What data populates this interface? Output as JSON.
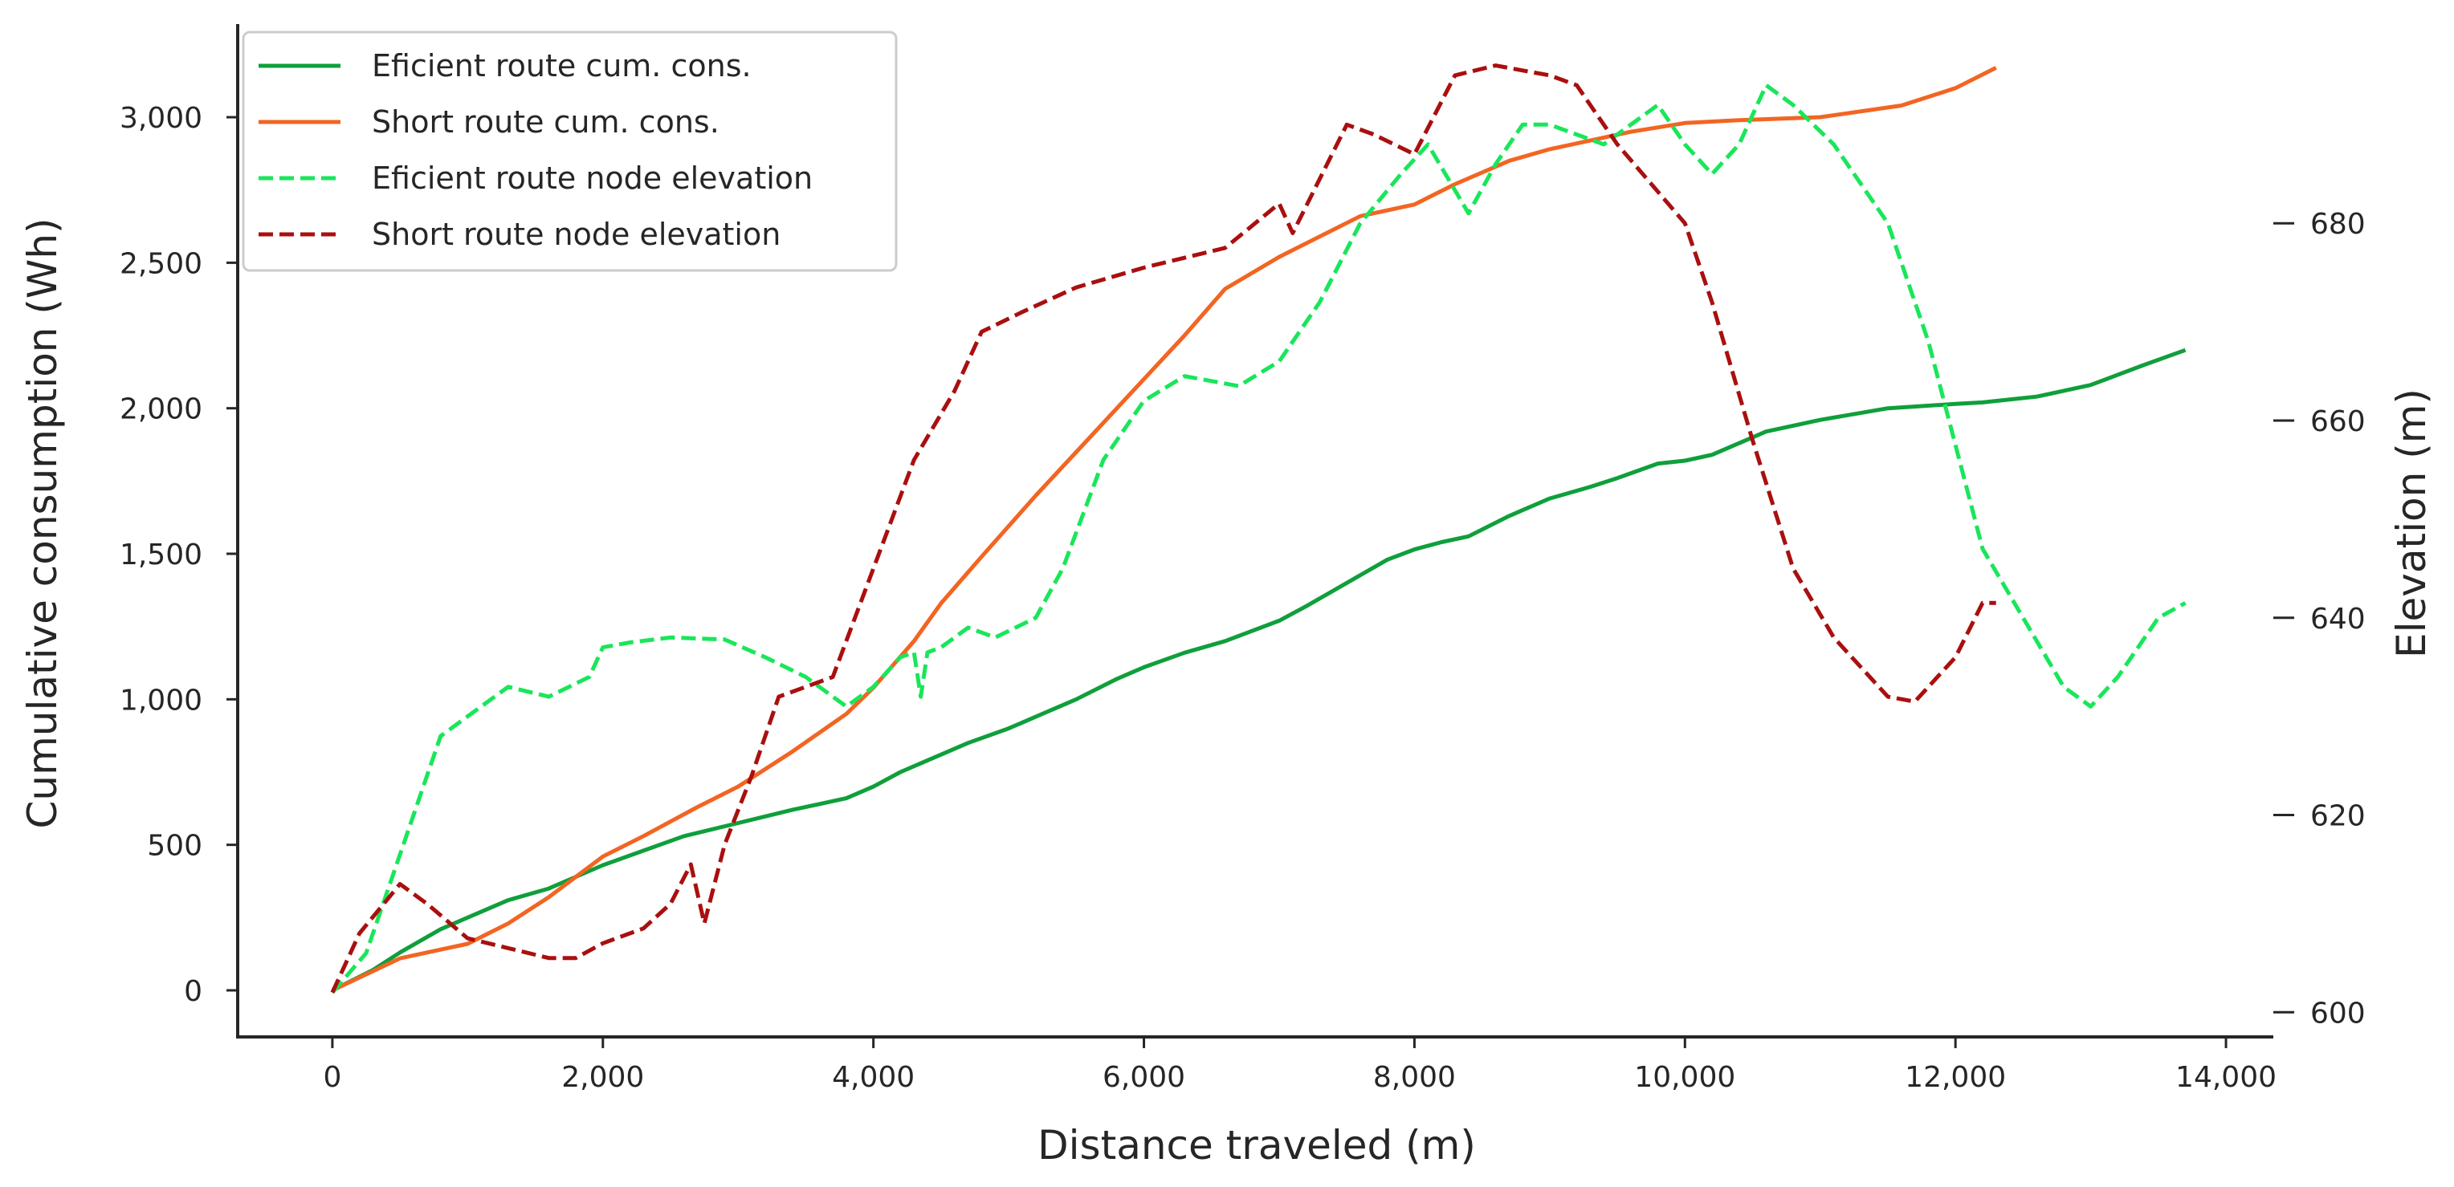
{
  "chart_data": {
    "type": "line",
    "xlabel": "Distance traveled (m)",
    "ylabel": "Cumulative consumption (Wh)",
    "y2label": "Elevation (m)",
    "xlim": [
      -700,
      14350
    ],
    "ylim": [
      -160,
      3320
    ],
    "y2lim": [
      597.5,
      700.2
    ],
    "xticks": [
      0,
      2000,
      4000,
      6000,
      8000,
      10000,
      12000,
      14000
    ],
    "xtick_labels": [
      "0",
      "2,000",
      "4,000",
      "6,000",
      "8,000",
      "10,000",
      "12,000",
      "14,000"
    ],
    "yticks": [
      0,
      500,
      1000,
      1500,
      2000,
      2500,
      3000
    ],
    "ytick_labels": [
      "0",
      "500",
      "1,000",
      "1,500",
      "2,000",
      "2,500",
      "3,000"
    ],
    "y2ticks": [
      600,
      620,
      640,
      660,
      680
    ],
    "y2tick_labels": [
      "600",
      "620",
      "640",
      "660",
      "680"
    ],
    "grid": false,
    "legend_position": "top-left",
    "series": [
      {
        "name": "Eficient route cum. cons.",
        "axis": "left",
        "style": "solid",
        "color": "#0f9f3b",
        "points": [
          [
            0,
            0
          ],
          [
            300,
            70
          ],
          [
            500,
            130
          ],
          [
            800,
            210
          ],
          [
            1000,
            250
          ],
          [
            1300,
            310
          ],
          [
            1600,
            350
          ],
          [
            1800,
            390
          ],
          [
            2000,
            430
          ],
          [
            2300,
            480
          ],
          [
            2600,
            530
          ],
          [
            3000,
            575
          ],
          [
            3400,
            620
          ],
          [
            3800,
            660
          ],
          [
            4000,
            700
          ],
          [
            4200,
            750
          ],
          [
            4300,
            770
          ],
          [
            4500,
            810
          ],
          [
            4700,
            850
          ],
          [
            5000,
            900
          ],
          [
            5300,
            960
          ],
          [
            5500,
            1000
          ],
          [
            5800,
            1070
          ],
          [
            6000,
            1110
          ],
          [
            6300,
            1160
          ],
          [
            6600,
            1200
          ],
          [
            7000,
            1270
          ],
          [
            7200,
            1320
          ],
          [
            7500,
            1400
          ],
          [
            7800,
            1480
          ],
          [
            8000,
            1515
          ],
          [
            8200,
            1540
          ],
          [
            8400,
            1560
          ],
          [
            8700,
            1630
          ],
          [
            9000,
            1690
          ],
          [
            9300,
            1730
          ],
          [
            9500,
            1760
          ],
          [
            9800,
            1810
          ],
          [
            10000,
            1820
          ],
          [
            10200,
            1840
          ],
          [
            10400,
            1880
          ],
          [
            10600,
            1920
          ],
          [
            11000,
            1960
          ],
          [
            11500,
            2000
          ],
          [
            12000,
            2015
          ],
          [
            12200,
            2020
          ],
          [
            12600,
            2040
          ],
          [
            13000,
            2080
          ],
          [
            13400,
            2150
          ],
          [
            13700,
            2200
          ]
        ]
      },
      {
        "name": "Short route cum. cons.",
        "axis": "left",
        "style": "solid",
        "color": "#f26522",
        "points": [
          [
            0,
            0
          ],
          [
            500,
            110
          ],
          [
            800,
            140
          ],
          [
            1000,
            160
          ],
          [
            1300,
            230
          ],
          [
            1600,
            320
          ],
          [
            2000,
            460
          ],
          [
            2300,
            530
          ],
          [
            2700,
            630
          ],
          [
            3000,
            700
          ],
          [
            3400,
            820
          ],
          [
            3800,
            950
          ],
          [
            4000,
            1040
          ],
          [
            4300,
            1200
          ],
          [
            4500,
            1330
          ],
          [
            4800,
            1490
          ],
          [
            5200,
            1700
          ],
          [
            5600,
            1900
          ],
          [
            6000,
            2100
          ],
          [
            6300,
            2250
          ],
          [
            6600,
            2410
          ],
          [
            7000,
            2520
          ],
          [
            7300,
            2590
          ],
          [
            7600,
            2660
          ],
          [
            8000,
            2700
          ],
          [
            8300,
            2770
          ],
          [
            8700,
            2850
          ],
          [
            9000,
            2890
          ],
          [
            9300,
            2920
          ],
          [
            9600,
            2950
          ],
          [
            10000,
            2980
          ],
          [
            10400,
            2990
          ],
          [
            11000,
            3000
          ],
          [
            11600,
            3040
          ],
          [
            12000,
            3100
          ],
          [
            12300,
            3170
          ]
        ]
      },
      {
        "name": "Eficient route node elevation",
        "axis": "right",
        "style": "dashed",
        "color": "#19e65a",
        "points": [
          [
            0,
            602
          ],
          [
            250,
            606
          ],
          [
            400,
            612
          ],
          [
            600,
            620
          ],
          [
            800,
            628
          ],
          [
            1000,
            630
          ],
          [
            1300,
            633
          ],
          [
            1600,
            632
          ],
          [
            1900,
            634
          ],
          [
            2000,
            637
          ],
          [
            2200,
            637.5
          ],
          [
            2500,
            638
          ],
          [
            2900,
            637.8
          ],
          [
            3200,
            636
          ],
          [
            3500,
            634
          ],
          [
            3800,
            631
          ],
          [
            4000,
            633
          ],
          [
            4200,
            636
          ],
          [
            4300,
            636.5
          ],
          [
            4350,
            632
          ],
          [
            4400,
            636.5
          ],
          [
            4500,
            637
          ],
          [
            4700,
            639
          ],
          [
            4900,
            638
          ],
          [
            5200,
            640
          ],
          [
            5400,
            645
          ],
          [
            5700,
            656
          ],
          [
            6000,
            662
          ],
          [
            6300,
            664.5
          ],
          [
            6500,
            664
          ],
          [
            6700,
            663.5
          ],
          [
            7000,
            666
          ],
          [
            7300,
            672
          ],
          [
            7600,
            680
          ],
          [
            7900,
            685
          ],
          [
            8100,
            688
          ],
          [
            8400,
            681
          ],
          [
            8600,
            686
          ],
          [
            8800,
            690
          ],
          [
            9000,
            690
          ],
          [
            9200,
            689
          ],
          [
            9400,
            688
          ],
          [
            9600,
            690
          ],
          [
            9800,
            692
          ],
          [
            10000,
            688
          ],
          [
            10200,
            685
          ],
          [
            10400,
            688
          ],
          [
            10600,
            694
          ],
          [
            10800,
            692
          ],
          [
            11100,
            688
          ],
          [
            11500,
            680
          ],
          [
            11800,
            668
          ],
          [
            12200,
            647
          ],
          [
            12500,
            640
          ],
          [
            12800,
            633
          ],
          [
            13000,
            631
          ],
          [
            13200,
            634
          ],
          [
            13500,
            640
          ],
          [
            13700,
            641.5
          ]
        ]
      },
      {
        "name": "Short route node elevation",
        "axis": "right",
        "style": "dashed",
        "color": "#aa0f0f",
        "points": [
          [
            0,
            602
          ],
          [
            200,
            608
          ],
          [
            500,
            613
          ],
          [
            700,
            611
          ],
          [
            1000,
            607.5
          ],
          [
            1300,
            606.5
          ],
          [
            1600,
            605.5
          ],
          [
            1800,
            605.5
          ],
          [
            2000,
            607
          ],
          [
            2300,
            608.5
          ],
          [
            2500,
            611
          ],
          [
            2650,
            615
          ],
          [
            2750,
            609
          ],
          [
            2900,
            617
          ],
          [
            3100,
            624
          ],
          [
            3300,
            632
          ],
          [
            3700,
            634
          ],
          [
            4000,
            645
          ],
          [
            4300,
            656
          ],
          [
            4600,
            663
          ],
          [
            4800,
            669
          ],
          [
            5100,
            671
          ],
          [
            5500,
            673.5
          ],
          [
            6000,
            675.5
          ],
          [
            6600,
            677.5
          ],
          [
            7000,
            682
          ],
          [
            7100,
            679
          ],
          [
            7500,
            690
          ],
          [
            7700,
            689
          ],
          [
            8000,
            687
          ],
          [
            8300,
            695
          ],
          [
            8600,
            696
          ],
          [
            8800,
            695.5
          ],
          [
            9000,
            695
          ],
          [
            9200,
            694
          ],
          [
            9500,
            688
          ],
          [
            10000,
            680
          ],
          [
            10200,
            672
          ],
          [
            10500,
            658
          ],
          [
            10800,
            645
          ],
          [
            11100,
            638
          ],
          [
            11500,
            632
          ],
          [
            11700,
            631.5
          ],
          [
            12000,
            636
          ],
          [
            12200,
            641.5
          ],
          [
            12300,
            641.5
          ]
        ]
      }
    ]
  }
}
